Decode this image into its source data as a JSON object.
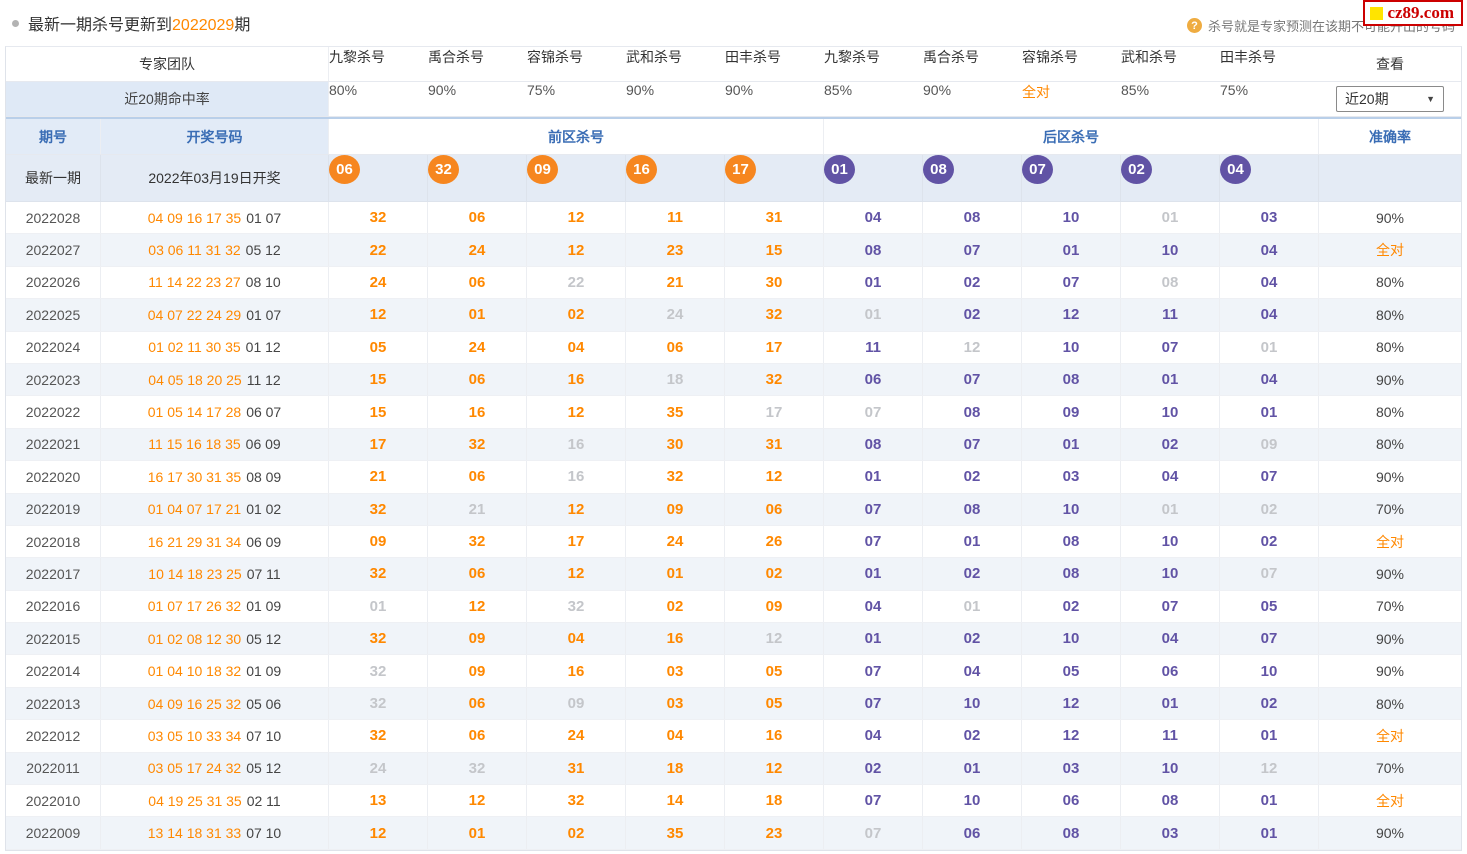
{
  "colors": {
    "text_orange": "#ff8800",
    "ball_orange": "#f6861f",
    "purple": "#6153a5",
    "miss_gray": "#c4c6ca",
    "header_blue": "#3a6db5",
    "logo_red": "#cc0000",
    "logo_yellow": "#ffe400"
  },
  "labels": {
    "full_match": "全对"
  },
  "topbar": {
    "title_prefix": "最新一期杀号更新到",
    "title_issue": "2022029",
    "title_suffix": "期",
    "help_text": "杀号就是专家预测在该期不可能开出的号码",
    "help_icon_glyph": "?",
    "logo_text": "cz89.com"
  },
  "header": {
    "team_label": "专家团队",
    "experts": [
      "九黎杀号",
      "禹合杀号",
      "容锦杀号",
      "武和杀号",
      "田丰杀号",
      "九黎杀号",
      "禹合杀号",
      "容锦杀号",
      "武和杀号",
      "田丰杀号"
    ],
    "view_label": "查看",
    "hit_rate_label": "近20期命中率",
    "hit_rates": [
      "80%",
      "90%",
      "75%",
      "90%",
      "90%",
      "85%",
      "90%",
      "全对",
      "85%",
      "75%"
    ],
    "range_select_value": "近20期",
    "issue_label": "期号",
    "draw_label": "开奖号码",
    "front_zone_label": "前区杀号",
    "back_zone_label": "后区杀号",
    "accuracy_label": "准确率"
  },
  "latest": {
    "issue_label": "最新一期",
    "draw_date": "2022年03月19日开奖",
    "front_kills": [
      "06",
      "32",
      "09",
      "16",
      "17"
    ],
    "back_kills": [
      "01",
      "08",
      "07",
      "02",
      "04"
    ]
  },
  "rows": [
    {
      "issue": "2022028",
      "draw_front": "04 09 16 17 35",
      "draw_back": "01 07",
      "front": [
        "32",
        "06",
        "12",
        "11",
        "31"
      ],
      "front_miss": [],
      "back": [
        "04",
        "08",
        "10",
        "01",
        "03"
      ],
      "back_miss": [
        3
      ],
      "accuracy": "90%"
    },
    {
      "issue": "2022027",
      "draw_front": "03 06 11 31 32",
      "draw_back": "05 12",
      "front": [
        "22",
        "24",
        "12",
        "23",
        "15"
      ],
      "front_miss": [],
      "back": [
        "08",
        "07",
        "01",
        "10",
        "04"
      ],
      "back_miss": [],
      "accuracy": "全对"
    },
    {
      "issue": "2022026",
      "draw_front": "11 14 22 23 27",
      "draw_back": "08 10",
      "front": [
        "24",
        "06",
        "22",
        "21",
        "30"
      ],
      "front_miss": [
        2
      ],
      "back": [
        "01",
        "02",
        "07",
        "08",
        "04"
      ],
      "back_miss": [
        3
      ],
      "accuracy": "80%"
    },
    {
      "issue": "2022025",
      "draw_front": "04 07 22 24 29",
      "draw_back": "01 07",
      "front": [
        "12",
        "01",
        "02",
        "24",
        "32"
      ],
      "front_miss": [
        3
      ],
      "back": [
        "01",
        "02",
        "12",
        "11",
        "04"
      ],
      "back_miss": [
        0
      ],
      "accuracy": "80%"
    },
    {
      "issue": "2022024",
      "draw_front": "01 02 11 30 35",
      "draw_back": "01 12",
      "front": [
        "05",
        "24",
        "04",
        "06",
        "17"
      ],
      "front_miss": [],
      "back": [
        "11",
        "12",
        "10",
        "07",
        "01"
      ],
      "back_miss": [
        1,
        4
      ],
      "accuracy": "80%"
    },
    {
      "issue": "2022023",
      "draw_front": "04 05 18 20 25",
      "draw_back": "11 12",
      "front": [
        "15",
        "06",
        "16",
        "18",
        "32"
      ],
      "front_miss": [
        3
      ],
      "back": [
        "06",
        "07",
        "08",
        "01",
        "04"
      ],
      "back_miss": [],
      "accuracy": "90%"
    },
    {
      "issue": "2022022",
      "draw_front": "01 05 14 17 28",
      "draw_back": "06 07",
      "front": [
        "15",
        "16",
        "12",
        "35",
        "17"
      ],
      "front_miss": [
        4
      ],
      "back": [
        "07",
        "08",
        "09",
        "10",
        "01"
      ],
      "back_miss": [
        0
      ],
      "accuracy": "80%"
    },
    {
      "issue": "2022021",
      "draw_front": "11 15 16 18 35",
      "draw_back": "06 09",
      "front": [
        "17",
        "32",
        "16",
        "30",
        "31"
      ],
      "front_miss": [
        2
      ],
      "back": [
        "08",
        "07",
        "01",
        "02",
        "09"
      ],
      "back_miss": [
        4
      ],
      "accuracy": "80%"
    },
    {
      "issue": "2022020",
      "draw_front": "16 17 30 31 35",
      "draw_back": "08 09",
      "front": [
        "21",
        "06",
        "16",
        "32",
        "12"
      ],
      "front_miss": [
        2
      ],
      "back": [
        "01",
        "02",
        "03",
        "04",
        "07"
      ],
      "back_miss": [],
      "accuracy": "90%"
    },
    {
      "issue": "2022019",
      "draw_front": "01 04 07 17 21",
      "draw_back": "01 02",
      "front": [
        "32",
        "21",
        "12",
        "09",
        "06"
      ],
      "front_miss": [
        1
      ],
      "back": [
        "07",
        "08",
        "10",
        "01",
        "02"
      ],
      "back_miss": [
        3,
        4
      ],
      "accuracy": "70%"
    },
    {
      "issue": "2022018",
      "draw_front": "16 21 29 31 34",
      "draw_back": "06 09",
      "front": [
        "09",
        "32",
        "17",
        "24",
        "26"
      ],
      "front_miss": [],
      "back": [
        "07",
        "01",
        "08",
        "10",
        "02"
      ],
      "back_miss": [],
      "accuracy": "全对"
    },
    {
      "issue": "2022017",
      "draw_front": "10 14 18 23 25",
      "draw_back": "07 11",
      "front": [
        "32",
        "06",
        "12",
        "01",
        "02"
      ],
      "front_miss": [],
      "back": [
        "01",
        "02",
        "08",
        "10",
        "07"
      ],
      "back_miss": [
        4
      ],
      "accuracy": "90%"
    },
    {
      "issue": "2022016",
      "draw_front": "01 07 17 26 32",
      "draw_back": "01 09",
      "front": [
        "01",
        "12",
        "32",
        "02",
        "09"
      ],
      "front_miss": [
        0,
        2
      ],
      "back": [
        "04",
        "01",
        "02",
        "07",
        "05"
      ],
      "back_miss": [
        1
      ],
      "accuracy": "70%"
    },
    {
      "issue": "2022015",
      "draw_front": "01 02 08 12 30",
      "draw_back": "05 12",
      "front": [
        "32",
        "09",
        "04",
        "16",
        "12"
      ],
      "front_miss": [
        4
      ],
      "back": [
        "01",
        "02",
        "10",
        "04",
        "07"
      ],
      "back_miss": [],
      "accuracy": "90%"
    },
    {
      "issue": "2022014",
      "draw_front": "01 04 10 18 32",
      "draw_back": "01 09",
      "front": [
        "32",
        "09",
        "16",
        "03",
        "05"
      ],
      "front_miss": [
        0
      ],
      "back": [
        "07",
        "04",
        "05",
        "06",
        "10"
      ],
      "back_miss": [],
      "accuracy": "90%"
    },
    {
      "issue": "2022013",
      "draw_front": "04 09 16 25 32",
      "draw_back": "05 06",
      "front": [
        "32",
        "06",
        "09",
        "03",
        "05"
      ],
      "front_miss": [
        0,
        2
      ],
      "back": [
        "07",
        "10",
        "12",
        "01",
        "02"
      ],
      "back_miss": [],
      "accuracy": "80%"
    },
    {
      "issue": "2022012",
      "draw_front": "03 05 10 33 34",
      "draw_back": "07 10",
      "front": [
        "32",
        "06",
        "24",
        "04",
        "16"
      ],
      "front_miss": [],
      "back": [
        "04",
        "02",
        "12",
        "11",
        "01"
      ],
      "back_miss": [],
      "accuracy": "全对"
    },
    {
      "issue": "2022011",
      "draw_front": "03 05 17 24 32",
      "draw_back": "05 12",
      "front": [
        "24",
        "32",
        "31",
        "18",
        "12"
      ],
      "front_miss": [
        0,
        1
      ],
      "back": [
        "02",
        "01",
        "03",
        "10",
        "12"
      ],
      "back_miss": [
        4
      ],
      "accuracy": "70%"
    },
    {
      "issue": "2022010",
      "draw_front": "04 19 25 31 35",
      "draw_back": "02 11",
      "front": [
        "13",
        "12",
        "32",
        "14",
        "18"
      ],
      "front_miss": [],
      "back": [
        "07",
        "10",
        "06",
        "08",
        "01"
      ],
      "back_miss": [],
      "accuracy": "全对"
    },
    {
      "issue": "2022009",
      "draw_front": "13 14 18 31 33",
      "draw_back": "07 10",
      "front": [
        "12",
        "01",
        "02",
        "35",
        "23"
      ],
      "front_miss": [],
      "back": [
        "07",
        "06",
        "08",
        "03",
        "01"
      ],
      "back_miss": [
        0
      ],
      "accuracy": "90%"
    }
  ]
}
